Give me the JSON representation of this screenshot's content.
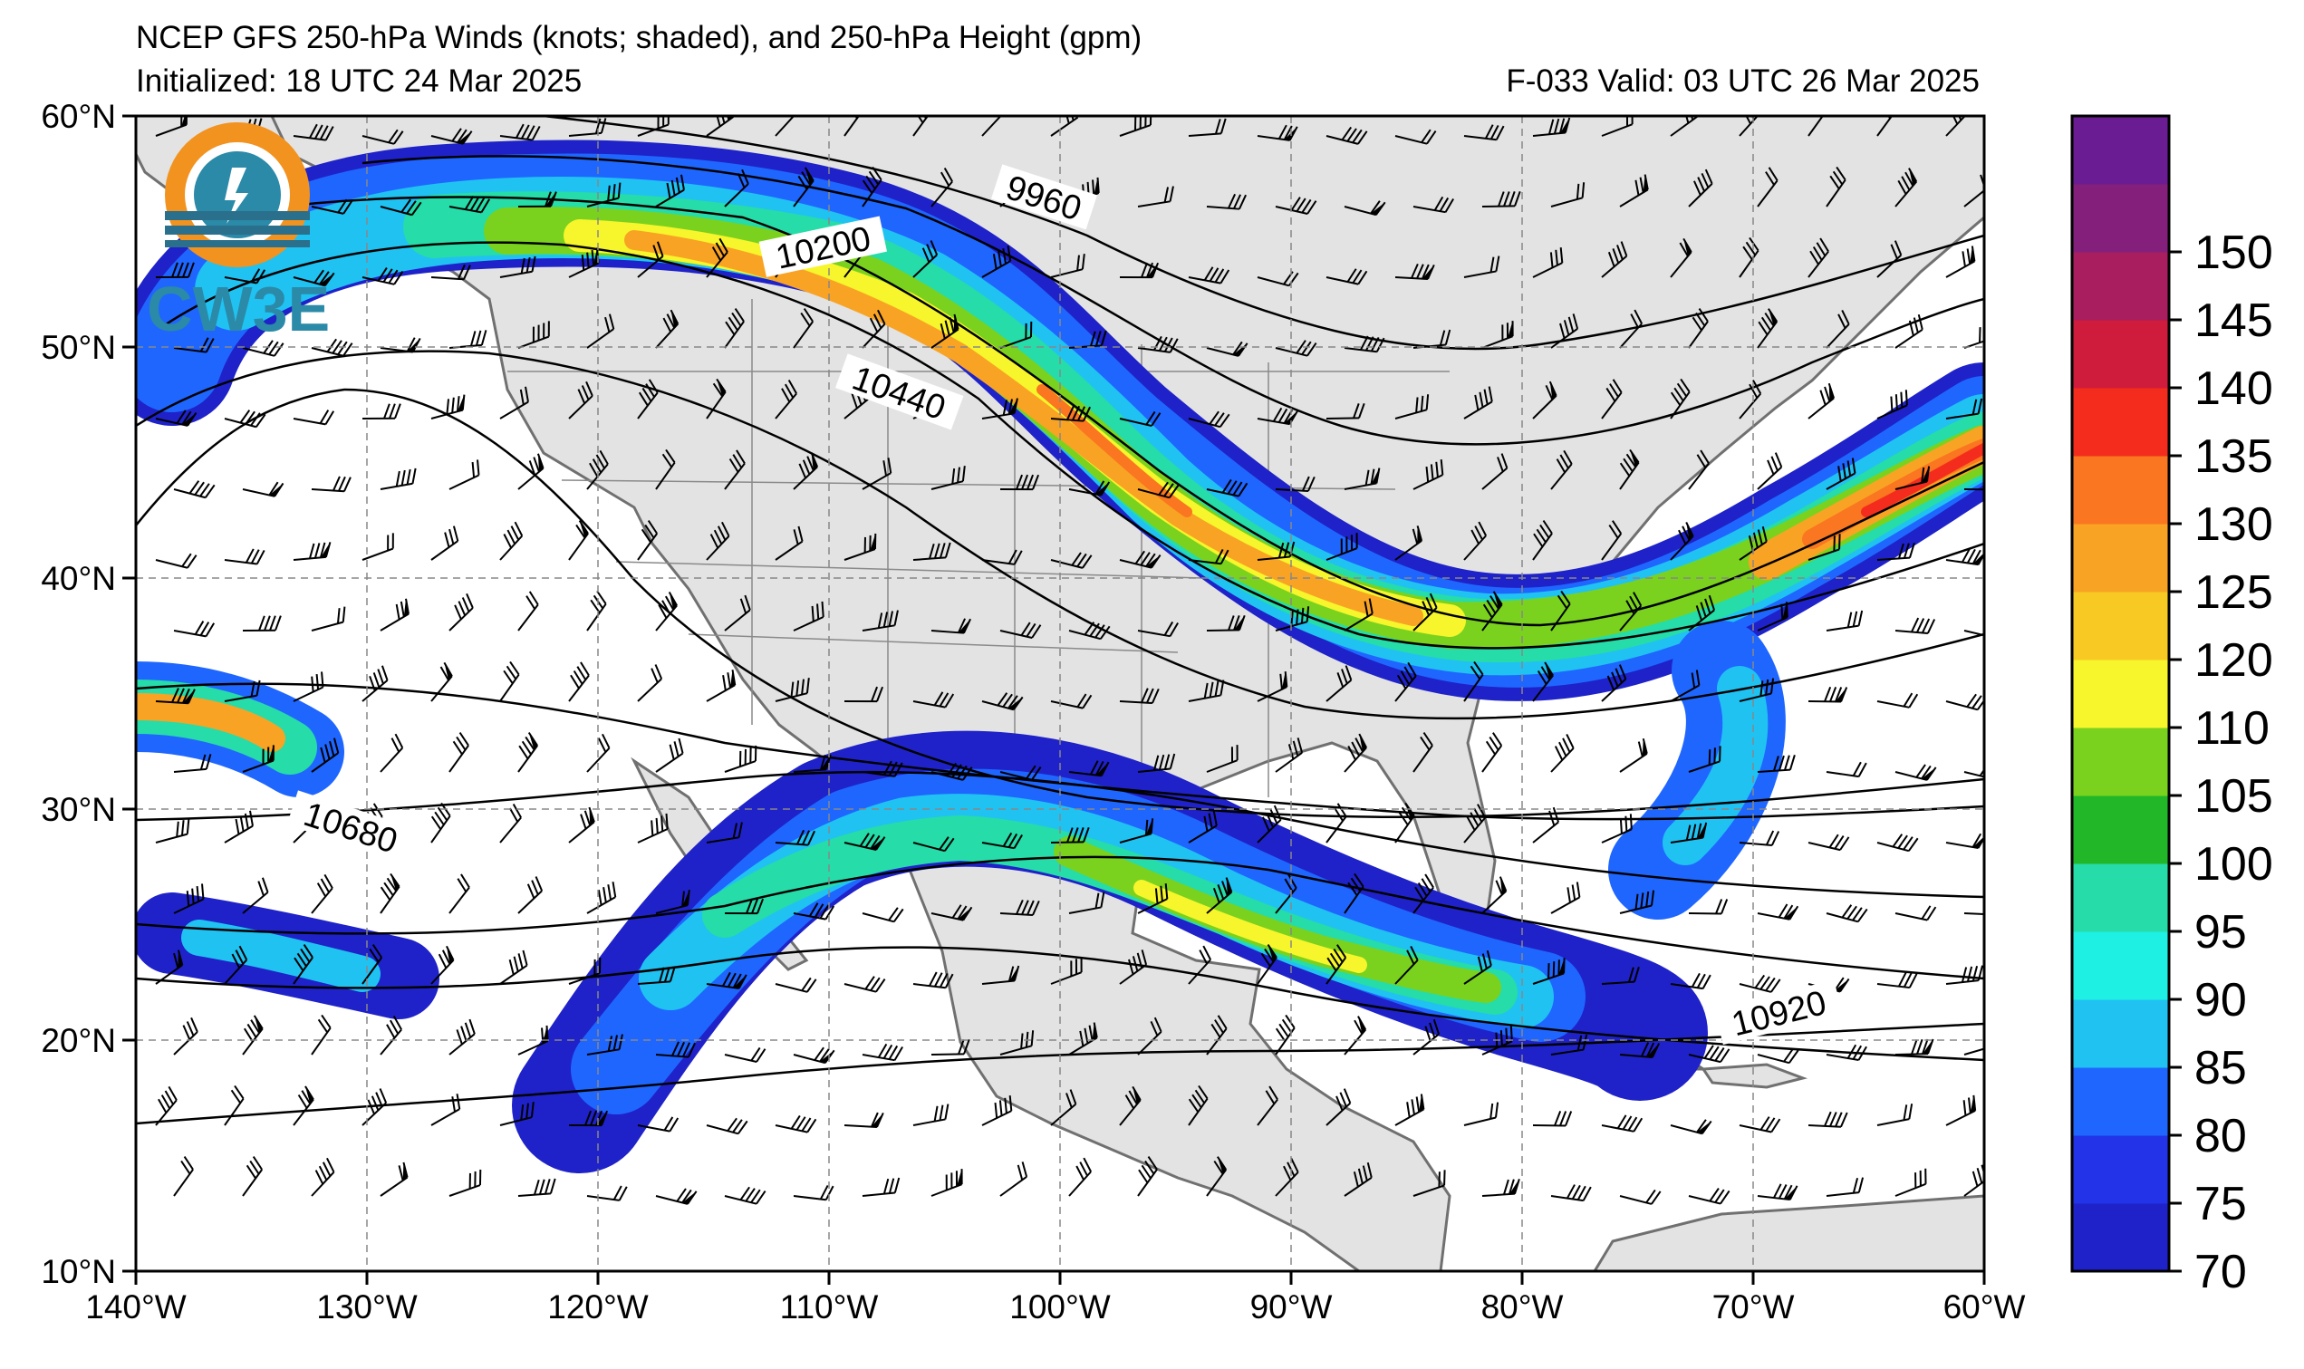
{
  "title": {
    "line1": "NCEP GFS 250-hPa Winds (knots; shaded), and 250-hPa Height (gpm)",
    "initialized": "Initialized: 18 UTC 24 Mar 2025",
    "valid": "F-033  Valid: 03 UTC 26 Mar 2025"
  },
  "logo": {
    "text": "CW3E",
    "icon": "cw3e-logo-icon"
  },
  "axes": {
    "lon_labels": [
      "140°W",
      "130°W",
      "120°W",
      "110°W",
      "100°W",
      "90°W",
      "80°W",
      "70°W",
      "60°W"
    ],
    "lat_labels": [
      "60°N",
      "50°N",
      "40°N",
      "30°N",
      "20°N",
      "10°N"
    ],
    "lon_range": [
      -140,
      -60
    ],
    "lat_range": [
      10,
      60
    ]
  },
  "colorbar": {
    "levels": [
      70,
      75,
      80,
      85,
      90,
      95,
      100,
      105,
      110,
      120,
      125,
      130,
      135,
      140,
      145,
      150,
      155
    ],
    "tick_labels": [
      "70",
      "75",
      "80",
      "85",
      "90",
      "95",
      "100",
      "105",
      "110",
      "120",
      "125",
      "130",
      "135",
      "140",
      "145",
      "150"
    ],
    "colors": [
      "#1f22c8",
      "#2233e8",
      "#1f66ff",
      "#20c2f2",
      "#1ef0e4",
      "#26dca8",
      "#22b728",
      "#7ad21e",
      "#f7f52b",
      "#f8c922",
      "#f9a324",
      "#fa7620",
      "#f42c1d",
      "#cf1b3c",
      "#a81e5e",
      "#84207c",
      "#6a1c92"
    ]
  },
  "contour_labels": [
    "9960",
    "10200",
    "10440",
    "10680",
    "10920"
  ],
  "map_elements": [
    "jet-stream-shading",
    "height-contours",
    "wind-barbs",
    "coastlines",
    "state-borders"
  ]
}
